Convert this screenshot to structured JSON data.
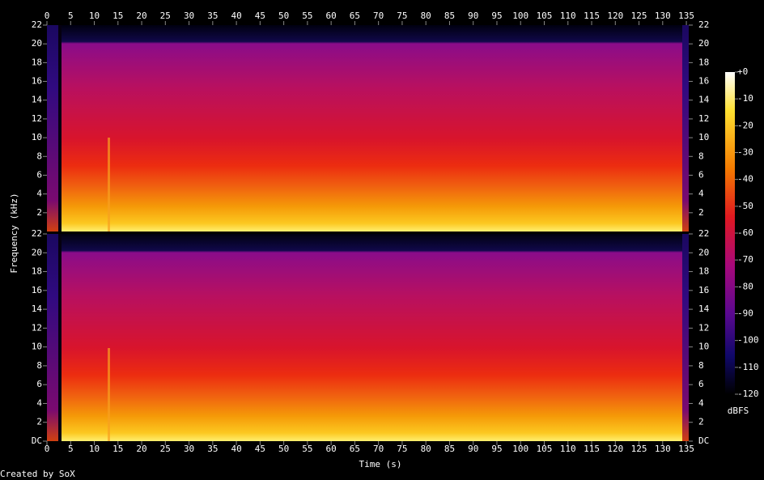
{
  "chart_data": {
    "type": "spectrogram",
    "xlabel": "Time (s)",
    "ylabel": "Frequency (kHz)",
    "footer": "Created by SoX",
    "xlim": [
      0,
      135.5
    ],
    "xticks": [
      0,
      5,
      10,
      15,
      20,
      25,
      30,
      35,
      40,
      45,
      50,
      55,
      60,
      65,
      70,
      75,
      80,
      85,
      90,
      95,
      100,
      105,
      110,
      115,
      120,
      125,
      130,
      135
    ],
    "channels": [
      {
        "ylim": [
          0,
          22
        ],
        "yticks": [
          2,
          4,
          6,
          8,
          10,
          12,
          14,
          16,
          18,
          20,
          22
        ]
      },
      {
        "ylim": [
          0,
          22
        ],
        "yticks": [
          {
            "value": 0,
            "label": "DC"
          },
          2,
          4,
          6,
          8,
          10,
          12,
          14,
          16,
          18,
          20,
          22
        ]
      }
    ],
    "colorbar": {
      "label": "dBFS",
      "lim": [
        -120,
        0
      ],
      "ticks": [
        {
          "value": 0,
          "label": "+0"
        },
        -10,
        -20,
        -30,
        -40,
        -50,
        -60,
        -70,
        -80,
        -90,
        -100,
        -110,
        -120
      ]
    }
  }
}
